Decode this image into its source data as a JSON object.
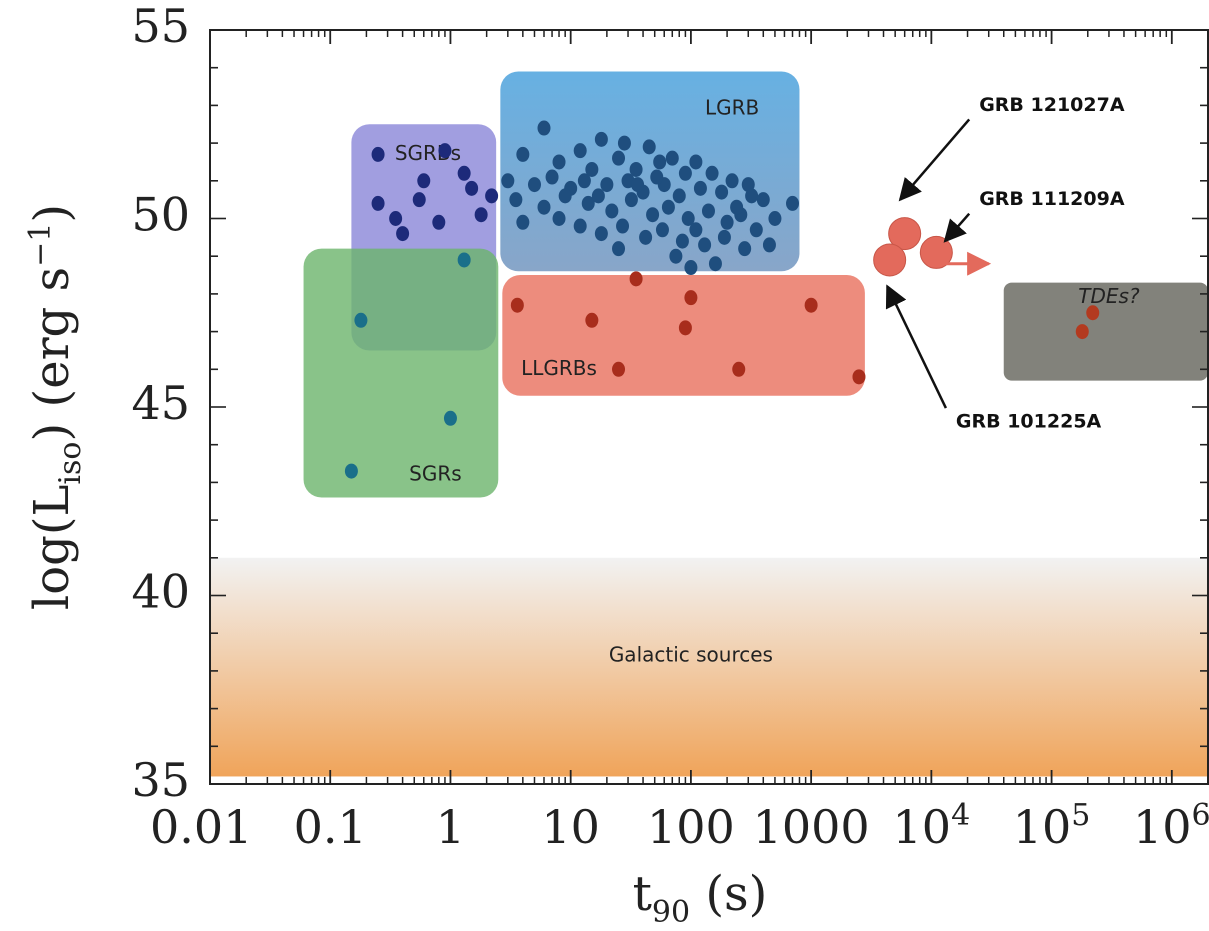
{
  "chart_data": {
    "type": "scatter",
    "title": "",
    "xlabel": "t",
    "xlabel_sub": "90",
    "xlabel_unit": "(s)",
    "ylabel_prefix": "log(L",
    "ylabel_sub": "iso",
    "ylabel_suffix": ")  (erg s",
    "ylabel_sup": "−1",
    "ylabel_close": ")",
    "x_scale": "log",
    "xlim": [
      0.01,
      2000000
    ],
    "ylim": [
      35,
      55
    ],
    "x_ticks": [
      {
        "value": 0.01,
        "label": "0.01"
      },
      {
        "value": 0.1,
        "label": "0.1"
      },
      {
        "value": 1,
        "label": "1"
      },
      {
        "value": 10,
        "label": "10"
      },
      {
        "value": 100,
        "label": "100"
      },
      {
        "value": 1000,
        "label": "1000"
      },
      {
        "value": 10000,
        "label": "10",
        "sup": "4"
      },
      {
        "value": 100000,
        "label": "10",
        "sup": "5"
      },
      {
        "value": 1000000,
        "label": "10",
        "sup": "6"
      }
    ],
    "y_ticks": [
      {
        "value": 35,
        "label": "35"
      },
      {
        "value": 40,
        "label": "40"
      },
      {
        "value": 45,
        "label": "45"
      },
      {
        "value": 50,
        "label": "50"
      },
      {
        "value": 55,
        "label": "55"
      }
    ],
    "colors": {
      "sgrb_box": "#8a86d8",
      "lgrb_box_top": "#5aaae0",
      "lgrb_box_bottom": "#7e9ec4",
      "sgr_box": "#6cb46c",
      "llgrb_box": "#e86f5c",
      "tde_box": "#7b7b74",
      "galactic_top": "#f2f2f2",
      "galactic_bottom": "#f0a45a",
      "sgrb_point": "#1d2a7a",
      "lgrb_point": "#1f4e7e",
      "sgr_point": "#1a6f8a",
      "llgrb_point": "#a82d1c",
      "tde_point": "#b33a1f",
      "special_grb": "#e36a5c"
    },
    "regions": [
      {
        "name": "SGRBs",
        "label": "SGRBs",
        "x_range": [
          0.15,
          2.4
        ],
        "y_range": [
          46.5,
          52.5
        ],
        "color_key": "sgrb_box",
        "label_at": [
          0.65,
          51.7
        ],
        "italic": false
      },
      {
        "name": "LGRB",
        "label": "LGRB",
        "x_range": [
          2.6,
          800
        ],
        "y_range": [
          48.6,
          53.9
        ],
        "color_key": "lgrb_box_top",
        "label_at": [
          220,
          52.9
        ],
        "italic": false
      },
      {
        "name": "SGRs",
        "label": "SGRs",
        "x_range": [
          0.06,
          2.5
        ],
        "y_range": [
          42.6,
          49.2
        ],
        "color_key": "sgr_box",
        "label_at": [
          0.75,
          43.2
        ],
        "italic": false
      },
      {
        "name": "LLGRBs",
        "label": "LLGRBs",
        "x_range": [
          2.7,
          2800
        ],
        "y_range": [
          45.3,
          48.5
        ],
        "color_key": "llgrb_box",
        "label_at": [
          8,
          46.0
        ],
        "italic": false
      },
      {
        "name": "TDEs",
        "label": "TDEs?",
        "x_range": [
          40000,
          2000000
        ],
        "y_range": [
          45.7,
          48.3
        ],
        "color_key": "tde_box",
        "label_at": [
          300000,
          47.9
        ],
        "italic": true
      },
      {
        "name": "Galactic sources",
        "label": "Galactic sources",
        "x_range": [
          0.01,
          2000000
        ],
        "y_range": [
          35.2,
          41
        ],
        "color_key": "galactic_bottom",
        "label_at": [
          100,
          38.4
        ],
        "italic": false
      }
    ],
    "series": [
      {
        "name": "SGRBs",
        "color_key": "sgrb_point",
        "points": [
          [
            0.25,
            51.7
          ],
          [
            0.9,
            51.8
          ],
          [
            1.3,
            51.2
          ],
          [
            0.6,
            51.0
          ],
          [
            1.5,
            50.8
          ],
          [
            0.25,
            50.4
          ],
          [
            0.55,
            50.5
          ],
          [
            0.35,
            50.0
          ],
          [
            0.8,
            49.9
          ],
          [
            0.4,
            49.6
          ],
          [
            1.8,
            50.1
          ],
          [
            2.2,
            50.6
          ]
        ]
      },
      {
        "name": "LGRB",
        "color_key": "lgrb_point",
        "points": [
          [
            6,
            52.4
          ],
          [
            12,
            51.8
          ],
          [
            18,
            52.1
          ],
          [
            28,
            52.0
          ],
          [
            45,
            51.9
          ],
          [
            70,
            51.6
          ],
          [
            110,
            51.5
          ],
          [
            4,
            51.7
          ],
          [
            8,
            51.5
          ],
          [
            15,
            51.3
          ],
          [
            25,
            51.6
          ],
          [
            35,
            51.3
          ],
          [
            55,
            51.5
          ],
          [
            90,
            51.2
          ],
          [
            150,
            51.2
          ],
          [
            220,
            51.0
          ],
          [
            3,
            51.0
          ],
          [
            5,
            50.9
          ],
          [
            7,
            51.1
          ],
          [
            10,
            50.8
          ],
          [
            13,
            51.0
          ],
          [
            20,
            50.9
          ],
          [
            30,
            51.0
          ],
          [
            40,
            50.7
          ],
          [
            60,
            50.9
          ],
          [
            80,
            50.6
          ],
          [
            120,
            50.8
          ],
          [
            180,
            50.7
          ],
          [
            300,
            50.9
          ],
          [
            400,
            50.5
          ],
          [
            700,
            50.4
          ],
          [
            3.5,
            50.5
          ],
          [
            6,
            50.3
          ],
          [
            9,
            50.6
          ],
          [
            14,
            50.4
          ],
          [
            22,
            50.2
          ],
          [
            32,
            50.5
          ],
          [
            48,
            50.1
          ],
          [
            65,
            50.3
          ],
          [
            95,
            50.0
          ],
          [
            140,
            50.2
          ],
          [
            200,
            49.9
          ],
          [
            260,
            50.1
          ],
          [
            350,
            49.7
          ],
          [
            4,
            49.9
          ],
          [
            8,
            50.0
          ],
          [
            12,
            49.8
          ],
          [
            18,
            49.6
          ],
          [
            27,
            49.8
          ],
          [
            42,
            49.5
          ],
          [
            58,
            49.7
          ],
          [
            85,
            49.4
          ],
          [
            130,
            49.3
          ],
          [
            190,
            49.5
          ],
          [
            280,
            49.2
          ],
          [
            450,
            49.3
          ],
          [
            25,
            49.2
          ],
          [
            75,
            49.0
          ],
          [
            160,
            48.8
          ],
          [
            110,
            49.7
          ],
          [
            36,
            50.9
          ],
          [
            17,
            50.6
          ],
          [
            52,
            51.1
          ],
          [
            240,
            50.3
          ],
          [
            320,
            50.6
          ],
          [
            500,
            50.0
          ],
          [
            100,
            48.7
          ]
        ]
      },
      {
        "name": "SGRs",
        "color_key": "sgr_point",
        "points": [
          [
            1.3,
            48.9
          ],
          [
            0.18,
            47.3
          ],
          [
            1.0,
            44.7
          ],
          [
            0.15,
            43.3
          ]
        ]
      },
      {
        "name": "LLGRBs",
        "color_key": "llgrb_point",
        "points": [
          [
            35,
            48.4
          ],
          [
            3.6,
            47.7
          ],
          [
            15,
            47.3
          ],
          [
            100,
            47.9
          ],
          [
            90,
            47.1
          ],
          [
            1000,
            47.7
          ],
          [
            25,
            46.0
          ],
          [
            250,
            46.0
          ],
          [
            2500,
            45.8
          ]
        ]
      },
      {
        "name": "TDEs",
        "color_key": "tde_point",
        "points": [
          [
            220000,
            47.5
          ],
          [
            180000,
            47.0
          ]
        ]
      }
    ],
    "special_points": [
      {
        "name": "GRB 121027A",
        "x": 6000,
        "y": 49.6
      },
      {
        "name": "GRB 111209A",
        "x": 11000,
        "y": 49.1
      },
      {
        "name": "GRB 101225A",
        "x": 4500,
        "y": 48.9
      }
    ],
    "annotations": [
      {
        "text": "GRB 121027A",
        "text_at": [
          25000,
          53.0
        ],
        "arrow_to": [
          5500,
          50.5
        ]
      },
      {
        "text": "GRB 111209A",
        "text_at": [
          25000,
          50.5
        ],
        "arrow_to": [
          13000,
          49.4
        ]
      },
      {
        "text": "GRB 101225A",
        "text_at": [
          16000,
          44.6
        ],
        "arrow_to": [
          4300,
          48.2
        ]
      }
    ],
    "extra_arrow": {
      "from": [
        11000,
        48.8
      ],
      "to": [
        30000,
        48.8
      ]
    }
  }
}
